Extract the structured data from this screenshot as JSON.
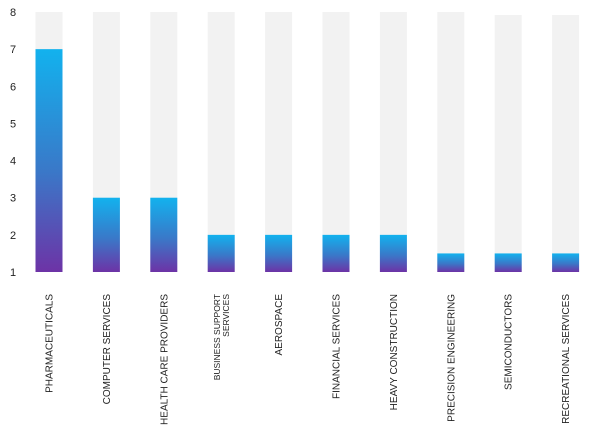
{
  "chart_data": {
    "type": "bar",
    "title": "",
    "xlabel": "",
    "ylabel": "",
    "ylim": [
      1,
      8
    ],
    "yticks": [
      1,
      2,
      3,
      4,
      5,
      6,
      7,
      8
    ],
    "grid": false,
    "legend": "none",
    "background_bar_max": 8,
    "categories": [
      [
        "PHARMACEUTICALS"
      ],
      [
        "COMPUTER SERVICES"
      ],
      [
        "HEALTH CARE PROVIDERS"
      ],
      [
        "BUSINESS SUPPORT",
        "SERVICES"
      ],
      [
        "AEROSPACE"
      ],
      [
        "FINANCIAL SERVICES"
      ],
      [
        "HEAVY CONSTRUCTION"
      ],
      [
        "PRECISION ENGINEERING"
      ],
      [
        "SEMICONDUCTORS"
      ],
      [
        "RECREATIONAL SERVICES"
      ]
    ],
    "values": [
      7,
      3,
      3,
      2,
      2,
      2,
      2,
      1.5,
      1.5,
      1.5
    ],
    "colors": {
      "bar_top": "#12b2ee",
      "bar_mid": "#3a78c8",
      "bar_bottom": "#6d33a6",
      "background_bar": "#f2f2f2"
    }
  }
}
